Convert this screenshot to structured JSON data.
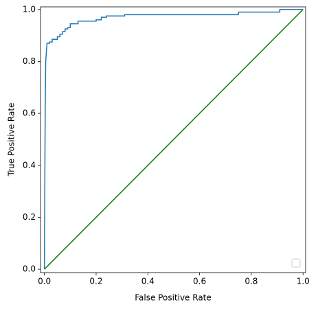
{
  "chart_data": {
    "type": "line",
    "xlabel": "False Positive Rate",
    "ylabel": "True Positive Rate",
    "series": [
      {
        "color": "#1f77b4",
        "x": [
          0,
          0.003,
          0.005,
          0.008,
          0.01,
          0.02,
          0.02,
          0.03,
          0.03,
          0.05,
          0.05,
          0.06,
          0.06,
          0.07,
          0.07,
          0.08,
          0.08,
          0.09,
          0.09,
          0.1,
          0.1,
          0.13,
          0.13,
          0.2,
          0.2,
          0.22,
          0.22,
          0.24,
          0.24,
          0.31,
          0.31,
          0.75,
          0.75,
          0.91,
          0.91,
          1.0
        ],
        "values": [
          0,
          0.6,
          0.8,
          0.84,
          0.87,
          0.87,
          0.875,
          0.875,
          0.885,
          0.885,
          0.895,
          0.895,
          0.905,
          0.905,
          0.915,
          0.915,
          0.925,
          0.925,
          0.93,
          0.93,
          0.945,
          0.945,
          0.955,
          0.955,
          0.96,
          0.96,
          0.97,
          0.97,
          0.975,
          0.975,
          0.98,
          0.98,
          0.99,
          0.99,
          1.0,
          1.0
        ]
      },
      {
        "color": "green",
        "x": [
          0,
          1
        ],
        "values": [
          0,
          1
        ]
      }
    ],
    "xlim": [
      -0.015,
      1.01
    ],
    "ylim": [
      -0.013,
      1.01
    ],
    "xticks": [
      {
        "value": 0,
        "label": "0.0"
      },
      0.2,
      0.4,
      0.6,
      0.8,
      {
        "value": 1,
        "label": "1.0"
      }
    ],
    "yticks": [
      {
        "value": 0,
        "label": "0.0"
      },
      0.2,
      0.4,
      0.6,
      0.8,
      {
        "value": 1,
        "label": "1.0"
      }
    ],
    "legend": "lower right"
  }
}
